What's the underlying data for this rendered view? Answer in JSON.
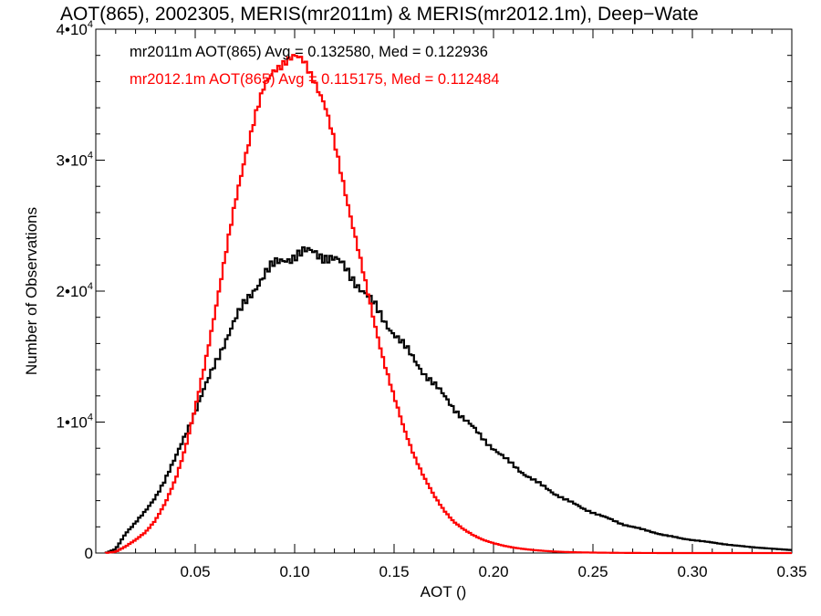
{
  "chart_data": {
    "type": "line",
    "title": "AOT(865), 2002305, MERIS(mr2011m) & MERIS(mr2012.1m), Deep−Wate",
    "xlabel": "AOT ()",
    "ylabel": "Number of Observations",
    "xlim": [
      0.0,
      0.35
    ],
    "ylim": [
      0,
      40000
    ],
    "x_ticks": [
      0.05,
      0.1,
      0.15,
      0.2,
      0.25,
      0.3,
      0.35
    ],
    "x_tick_labels": [
      "0.05",
      "0.10",
      "0.15",
      "0.20",
      "0.25",
      "0.30",
      "0.35"
    ],
    "y_ticks": [
      {
        "value": 0,
        "base": "0",
        "exp": ""
      },
      {
        "value": 10000,
        "base": "1•10",
        "exp": "4"
      },
      {
        "value": 20000,
        "base": "2•10",
        "exp": "4"
      },
      {
        "value": 30000,
        "base": "3•10",
        "exp": "4"
      },
      {
        "value": 40000,
        "base": "4•10",
        "exp": "4"
      }
    ],
    "grid": false,
    "style": "histogram-step",
    "annotations": [
      {
        "text": "mr2011m AOT(865) Avg = 0.132580, Med = 0.122936",
        "color": "#000000"
      },
      {
        "text": "mr2012.1m AOT(865) Avg = 0.115175, Med = 0.112484",
        "color": "#ff0000"
      }
    ],
    "series": [
      {
        "color": "#000000",
        "x": [
          0.005,
          0.01,
          0.015,
          0.02,
          0.025,
          0.03,
          0.035,
          0.04,
          0.045,
          0.05,
          0.055,
          0.06,
          0.065,
          0.07,
          0.075,
          0.08,
          0.085,
          0.09,
          0.095,
          0.1,
          0.105,
          0.11,
          0.115,
          0.12,
          0.125,
          0.13,
          0.135,
          0.14,
          0.145,
          0.15,
          0.155,
          0.16,
          0.165,
          0.17,
          0.175,
          0.18,
          0.185,
          0.19,
          0.195,
          0.2,
          0.205,
          0.21,
          0.215,
          0.22,
          0.225,
          0.23,
          0.235,
          0.24,
          0.245,
          0.25,
          0.255,
          0.26,
          0.265,
          0.27,
          0.275,
          0.28,
          0.285,
          0.29,
          0.295,
          0.3,
          0.305,
          0.31,
          0.315,
          0.32,
          0.325,
          0.33,
          0.335,
          0.34,
          0.345,
          0.35
        ],
        "y": [
          0,
          300,
          1500,
          2300,
          3200,
          4300,
          5600,
          7200,
          9100,
          10800,
          12600,
          14500,
          16200,
          17700,
          19100,
          20300,
          21300,
          22000,
          22500,
          22700,
          22900,
          23000,
          22700,
          22400,
          21800,
          20900,
          19900,
          18900,
          17800,
          16800,
          15800,
          14800,
          13800,
          12900,
          12000,
          11100,
          10300,
          9500,
          8700,
          8000,
          7300,
          6700,
          6100,
          5600,
          5100,
          4600,
          4200,
          3800,
          3400,
          3100,
          2800,
          2500,
          2200,
          2000,
          1800,
          1600,
          1400,
          1250,
          1100,
          1000,
          900,
          800,
          700,
          600,
          520,
          450,
          390,
          330,
          280,
          230
        ]
      },
      {
        "color": "#ff0000",
        "x": [
          0.005,
          0.01,
          0.015,
          0.02,
          0.025,
          0.03,
          0.035,
          0.04,
          0.045,
          0.05,
          0.055,
          0.06,
          0.065,
          0.07,
          0.075,
          0.08,
          0.085,
          0.09,
          0.095,
          0.1,
          0.105,
          0.11,
          0.115,
          0.12,
          0.125,
          0.13,
          0.135,
          0.14,
          0.145,
          0.15,
          0.155,
          0.16,
          0.165,
          0.17,
          0.175,
          0.18,
          0.185,
          0.19,
          0.195,
          0.2,
          0.205,
          0.21,
          0.215,
          0.22,
          0.225,
          0.23,
          0.235,
          0.24,
          0.245,
          0.25,
          0.255,
          0.26,
          0.265,
          0.27,
          0.275,
          0.28,
          0.285,
          0.29,
          0.295,
          0.3,
          0.305,
          0.31,
          0.315,
          0.32,
          0.325,
          0.33,
          0.335,
          0.34,
          0.345,
          0.35
        ],
        "y": [
          0,
          100,
          500,
          1000,
          1600,
          2500,
          3800,
          5600,
          8000,
          11000,
          14500,
          18500,
          22500,
          26600,
          30300,
          33300,
          35600,
          37000,
          37600,
          37800,
          37500,
          36200,
          34200,
          31300,
          28000,
          24500,
          21000,
          17700,
          14600,
          11900,
          9500,
          7500,
          5800,
          4400,
          3300,
          2400,
          1800,
          1350,
          1000,
          750,
          560,
          420,
          310,
          230,
          170,
          120,
          85,
          60,
          45,
          35,
          25,
          18,
          12,
          8,
          5,
          3,
          2,
          1,
          0,
          0,
          0,
          0,
          0,
          0,
          0,
          0,
          0,
          0,
          0,
          0
        ]
      }
    ]
  }
}
